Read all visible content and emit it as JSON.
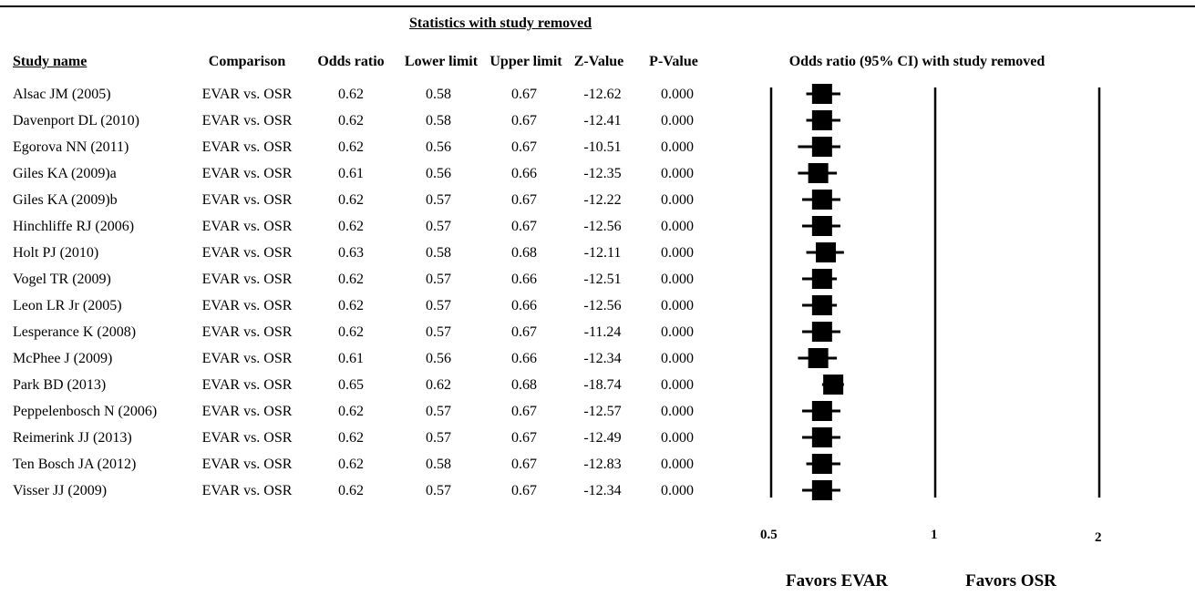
{
  "section_title": "Statistics with study removed",
  "columns": {
    "study_name": "Study name",
    "comparison": "Comparison",
    "odds_ratio": "Odds ratio",
    "lower_limit": "Lower limit",
    "upper_limit": "Upper limit",
    "z_value": "Z-Value",
    "p_value": "P-Value"
  },
  "plot_title": "Odds ratio (95% CI) with study removed",
  "favors_left": "Favors EVAR",
  "favors_right": "Favors OSR",
  "chart_data": {
    "type": "forest",
    "x_scale": "log",
    "xlim": [
      0.5,
      2
    ],
    "reference_line": 1,
    "ticks": [
      "0.5",
      "1",
      "2"
    ],
    "marker_color": "#000000",
    "rows": [
      {
        "study": "Alsac JM (2005)",
        "comparison": "EVAR vs. OSR",
        "or": "0.62",
        "lower": "0.58",
        "upper": "0.67",
        "z": "-12.62",
        "p": "0.000"
      },
      {
        "study": "Davenport DL (2010)",
        "comparison": "EVAR vs. OSR",
        "or": "0.62",
        "lower": "0.58",
        "upper": "0.67",
        "z": "-12.41",
        "p": "0.000"
      },
      {
        "study": "Egorova NN (2011)",
        "comparison": "EVAR vs. OSR",
        "or": "0.62",
        "lower": "0.56",
        "upper": "0.67",
        "z": "-10.51",
        "p": "0.000"
      },
      {
        "study": "Giles KA (2009)a",
        "comparison": "EVAR vs. OSR",
        "or": "0.61",
        "lower": "0.56",
        "upper": "0.66",
        "z": "-12.35",
        "p": "0.000"
      },
      {
        "study": "Giles KA (2009)b",
        "comparison": "EVAR vs. OSR",
        "or": "0.62",
        "lower": "0.57",
        "upper": "0.67",
        "z": "-12.22",
        "p": "0.000"
      },
      {
        "study": "Hinchliffe RJ (2006)",
        "comparison": "EVAR vs. OSR",
        "or": "0.62",
        "lower": "0.57",
        "upper": "0.67",
        "z": "-12.56",
        "p": "0.000"
      },
      {
        "study": "Holt PJ (2010)",
        "comparison": "EVAR vs. OSR",
        "or": "0.63",
        "lower": "0.58",
        "upper": "0.68",
        "z": "-12.11",
        "p": "0.000"
      },
      {
        "study": "Vogel TR (2009)",
        "comparison": "EVAR vs. OSR",
        "or": "0.62",
        "lower": "0.57",
        "upper": "0.66",
        "z": "-12.51",
        "p": "0.000"
      },
      {
        "study": "Leon LR Jr (2005)",
        "comparison": "EVAR vs. OSR",
        "or": "0.62",
        "lower": "0.57",
        "upper": "0.66",
        "z": "-12.56",
        "p": "0.000"
      },
      {
        "study": "Lesperance K (2008)",
        "comparison": "EVAR vs. OSR",
        "or": "0.62",
        "lower": "0.57",
        "upper": "0.67",
        "z": "-11.24",
        "p": "0.000"
      },
      {
        "study": "McPhee J (2009)",
        "comparison": "EVAR vs. OSR",
        "or": "0.61",
        "lower": "0.56",
        "upper": "0.66",
        "z": "-12.34",
        "p": "0.000"
      },
      {
        "study": "Park BD (2013)",
        "comparison": "EVAR vs. OSR",
        "or": "0.65",
        "lower": "0.62",
        "upper": "0.68",
        "z": "-18.74",
        "p": "0.000"
      },
      {
        "study": "Peppelenbosch N (2006)",
        "comparison": "EVAR vs. OSR",
        "or": "0.62",
        "lower": "0.57",
        "upper": "0.67",
        "z": "-12.57",
        "p": "0.000"
      },
      {
        "study": "Reimerink JJ (2013)",
        "comparison": "EVAR vs. OSR",
        "or": "0.62",
        "lower": "0.57",
        "upper": "0.67",
        "z": "-12.49",
        "p": "0.000"
      },
      {
        "study": "Ten Bosch JA (2012)",
        "comparison": "EVAR vs. OSR",
        "or": "0.62",
        "lower": "0.58",
        "upper": "0.67",
        "z": "-12.83",
        "p": "0.000"
      },
      {
        "study": "Visser JJ (2009)",
        "comparison": "EVAR vs. OSR",
        "or": "0.62",
        "lower": "0.57",
        "upper": "0.67",
        "z": "-12.34",
        "p": "0.000"
      }
    ]
  }
}
